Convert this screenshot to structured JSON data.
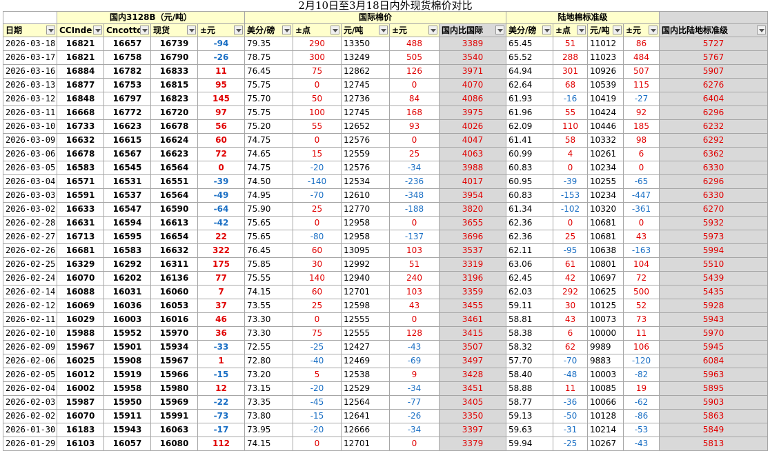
{
  "title": "2月10日至3月18日内外现货棉价对比",
  "groups": [
    "国内3128B（元/吨）",
    "国际棉价",
    "陆地棉标准级"
  ],
  "columns": [
    "日期",
    "CCInde",
    "Cncotto",
    "现货",
    "±元",
    "美分/磅",
    "±点",
    "元/吨",
    "±元",
    "国内比国际",
    "美分/磅",
    "±点",
    "元/吨",
    "±元",
    "国内比陆地标准级"
  ],
  "rows": [
    {
      "date": "2026-03-18",
      "cc": "16821",
      "cn": "16657",
      "spot": "16739",
      "d1": "-94",
      "usc": "79.35",
      "pt": "290",
      "cny": "13350",
      "d2": "488",
      "r1": "3389",
      "lusc": "65.45",
      "lpt": "51",
      "lcny": "11012",
      "ld": "86",
      "r2": "5727"
    },
    {
      "date": "2026-03-17",
      "cc": "16821",
      "cn": "16758",
      "spot": "16790",
      "d1": "-26",
      "usc": "78.75",
      "pt": "300",
      "cny": "13249",
      "d2": "505",
      "r1": "3540",
      "lusc": "65.52",
      "lpt": "288",
      "lcny": "11023",
      "ld": "484",
      "r2": "5767"
    },
    {
      "date": "2026-03-16",
      "cc": "16884",
      "cn": "16782",
      "spot": "16833",
      "d1": "11",
      "usc": "76.45",
      "pt": "75",
      "cny": "12862",
      "d2": "126",
      "r1": "3971",
      "lusc": "64.94",
      "lpt": "301",
      "lcny": "10926",
      "ld": "507",
      "r2": "5907"
    },
    {
      "date": "2026-03-13",
      "cc": "16877",
      "cn": "16753",
      "spot": "16815",
      "d1": "95",
      "usc": "75.75",
      "pt": "0",
      "cny": "12745",
      "d2": "0",
      "r1": "4070",
      "lusc": "62.64",
      "lpt": "68",
      "lcny": "10539",
      "ld": "115",
      "r2": "6276"
    },
    {
      "date": "2026-03-12",
      "cc": "16848",
      "cn": "16797",
      "spot": "16823",
      "d1": "145",
      "usc": "75.70",
      "pt": "50",
      "cny": "12736",
      "d2": "84",
      "r1": "4086",
      "lusc": "61.93",
      "lpt": "-16",
      "lcny": "10419",
      "ld": "-27",
      "r2": "6404"
    },
    {
      "date": "2026-03-11",
      "cc": "16668",
      "cn": "16772",
      "spot": "16720",
      "d1": "97",
      "usc": "75.75",
      "pt": "100",
      "cny": "12745",
      "d2": "168",
      "r1": "3975",
      "lusc": "61.96",
      "lpt": "55",
      "lcny": "10424",
      "ld": "92",
      "r2": "6296"
    },
    {
      "date": "2026-03-10",
      "cc": "16733",
      "cn": "16623",
      "spot": "16678",
      "d1": "56",
      "usc": "75.20",
      "pt": "55",
      "cny": "12652",
      "d2": "93",
      "r1": "4026",
      "lusc": "62.09",
      "lpt": "110",
      "lcny": "10446",
      "ld": "185",
      "r2": "6232"
    },
    {
      "date": "2026-03-09",
      "cc": "16632",
      "cn": "16615",
      "spot": "16624",
      "d1": "60",
      "usc": "74.75",
      "pt": "0",
      "cny": "12576",
      "d2": "0",
      "r1": "4047",
      "lusc": "61.41",
      "lpt": "58",
      "lcny": "10332",
      "ld": "98",
      "r2": "6292"
    },
    {
      "date": "2026-03-06",
      "cc": "16678",
      "cn": "16567",
      "spot": "16623",
      "d1": "72",
      "usc": "74.65",
      "pt": "15",
      "cny": "12559",
      "d2": "25",
      "r1": "4063",
      "lusc": "60.99",
      "lpt": "4",
      "lcny": "10261",
      "ld": "6",
      "r2": "6362"
    },
    {
      "date": "2026-03-05",
      "cc": "16583",
      "cn": "16545",
      "spot": "16564",
      "d1": "0",
      "usc": "74.75",
      "pt": "-20",
      "cny": "12576",
      "d2": "-34",
      "r1": "3988",
      "lusc": "60.83",
      "lpt": "0",
      "lcny": "10234",
      "ld": "0",
      "r2": "6330"
    },
    {
      "date": "2026-03-04",
      "cc": "16571",
      "cn": "16531",
      "spot": "16551",
      "d1": "-39",
      "usc": "74.50",
      "pt": "-140",
      "cny": "12534",
      "d2": "-236",
      "r1": "4017",
      "lusc": "60.95",
      "lpt": "-39",
      "lcny": "10255",
      "ld": "-65",
      "r2": "6296"
    },
    {
      "date": "2026-03-03",
      "cc": "16591",
      "cn": "16537",
      "spot": "16564",
      "d1": "-49",
      "usc": "74.95",
      "pt": "-70",
      "cny": "12610",
      "d2": "-348",
      "r1": "3954",
      "lusc": "60.83",
      "lpt": "-153",
      "lcny": "10234",
      "ld": "-447",
      "r2": "6330"
    },
    {
      "date": "2026-03-02",
      "cc": "16633",
      "cn": "16547",
      "spot": "16590",
      "d1": "-64",
      "usc": "75.90",
      "pt": "25",
      "cny": "12770",
      "d2": "-188",
      "r1": "3820",
      "lusc": "61.34",
      "lpt": "-102",
      "lcny": "10320",
      "ld": "-361",
      "r2": "6270"
    },
    {
      "date": "2026-02-28",
      "cc": "16631",
      "cn": "16594",
      "spot": "16613",
      "d1": "-42",
      "usc": "75.65",
      "pt": "0",
      "cny": "12958",
      "d2": "0",
      "r1": "3655",
      "lusc": "62.36",
      "lpt": "0",
      "lcny": "10681",
      "ld": "0",
      "r2": "5932"
    },
    {
      "date": "2026-02-27",
      "cc": "16713",
      "cn": "16595",
      "spot": "16654",
      "d1": "22",
      "usc": "75.65",
      "pt": "-80",
      "cny": "12958",
      "d2": "-137",
      "r1": "3696",
      "lusc": "62.36",
      "lpt": "25",
      "lcny": "10681",
      "ld": "43",
      "r2": "5973"
    },
    {
      "date": "2026-02-26",
      "cc": "16681",
      "cn": "16583",
      "spot": "16632",
      "d1": "322",
      "usc": "76.45",
      "pt": "60",
      "cny": "13095",
      "d2": "103",
      "r1": "3537",
      "lusc": "62.11",
      "lpt": "-95",
      "lcny": "10638",
      "ld": "-163",
      "r2": "5994"
    },
    {
      "date": "2026-02-25",
      "cc": "16329",
      "cn": "16292",
      "spot": "16311",
      "d1": "175",
      "usc": "75.85",
      "pt": "30",
      "cny": "12992",
      "d2": "51",
      "r1": "3319",
      "lusc": "63.06",
      "lpt": "61",
      "lcny": "10801",
      "ld": "104",
      "r2": "5510"
    },
    {
      "date": "2026-02-24",
      "cc": "16070",
      "cn": "16202",
      "spot": "16136",
      "d1": "77",
      "usc": "75.55",
      "pt": "140",
      "cny": "12940",
      "d2": "240",
      "r1": "3196",
      "lusc": "62.45",
      "lpt": "42",
      "lcny": "10697",
      "ld": "72",
      "r2": "5439"
    },
    {
      "date": "2026-02-14",
      "cc": "16088",
      "cn": "16031",
      "spot": "16060",
      "d1": "7",
      "usc": "74.15",
      "pt": "60",
      "cny": "12701",
      "d2": "103",
      "r1": "3359",
      "lusc": "62.03",
      "lpt": "292",
      "lcny": "10625",
      "ld": "500",
      "r2": "5435"
    },
    {
      "date": "2026-02-12",
      "cc": "16069",
      "cn": "16036",
      "spot": "16053",
      "d1": "37",
      "usc": "73.55",
      "pt": "25",
      "cny": "12598",
      "d2": "43",
      "r1": "3455",
      "lusc": "59.11",
      "lpt": "30",
      "lcny": "10125",
      "ld": "52",
      "r2": "5928"
    },
    {
      "date": "2026-02-11",
      "cc": "16029",
      "cn": "16003",
      "spot": "16016",
      "d1": "46",
      "usc": "73.30",
      "pt": "0",
      "cny": "12555",
      "d2": "0",
      "r1": "3461",
      "lusc": "58.81",
      "lpt": "43",
      "lcny": "10073",
      "ld": "73",
      "r2": "5943"
    },
    {
      "date": "2026-02-10",
      "cc": "15988",
      "cn": "15952",
      "spot": "15970",
      "d1": "36",
      "usc": "73.30",
      "pt": "75",
      "cny": "12555",
      "d2": "128",
      "r1": "3415",
      "lusc": "58.38",
      "lpt": "6",
      "lcny": "10000",
      "ld": "11",
      "r2": "5970"
    },
    {
      "date": "2026-02-09",
      "cc": "15967",
      "cn": "15901",
      "spot": "15934",
      "d1": "-33",
      "usc": "72.55",
      "pt": "-25",
      "cny": "12427",
      "d2": "-43",
      "r1": "3507",
      "lusc": "58.32",
      "lpt": "62",
      "lcny": "9989",
      "ld": "106",
      "r2": "5945"
    },
    {
      "date": "2026-02-06",
      "cc": "16025",
      "cn": "15908",
      "spot": "15967",
      "d1": "1",
      "usc": "72.80",
      "pt": "-40",
      "cny": "12469",
      "d2": "-69",
      "r1": "3497",
      "lusc": "57.70",
      "lpt": "-70",
      "lcny": "9883",
      "ld": "-120",
      "r2": "6084"
    },
    {
      "date": "2026-02-05",
      "cc": "16012",
      "cn": "15919",
      "spot": "15966",
      "d1": "-15",
      "usc": "73.20",
      "pt": "5",
      "cny": "12538",
      "d2": "9",
      "r1": "3428",
      "lusc": "58.40",
      "lpt": "-48",
      "lcny": "10003",
      "ld": "-82",
      "r2": "5963"
    },
    {
      "date": "2026-02-04",
      "cc": "16002",
      "cn": "15958",
      "spot": "15980",
      "d1": "12",
      "usc": "73.15",
      "pt": "-20",
      "cny": "12529",
      "d2": "-34",
      "r1": "3451",
      "lusc": "58.88",
      "lpt": "11",
      "lcny": "10085",
      "ld": "19",
      "r2": "5895"
    },
    {
      "date": "2026-02-03",
      "cc": "15987",
      "cn": "15950",
      "spot": "15969",
      "d1": "-22",
      "usc": "73.35",
      "pt": "-45",
      "cny": "12564",
      "d2": "-77",
      "r1": "3405",
      "lusc": "58.77",
      "lpt": "-36",
      "lcny": "10066",
      "ld": "-62",
      "r2": "5903"
    },
    {
      "date": "2026-02-02",
      "cc": "16070",
      "cn": "15911",
      "spot": "15991",
      "d1": "-73",
      "usc": "73.80",
      "pt": "-15",
      "cny": "12641",
      "d2": "-26",
      "r1": "3350",
      "lusc": "59.13",
      "lpt": "-50",
      "lcny": "10128",
      "ld": "-86",
      "r2": "5863"
    },
    {
      "date": "2026-01-30",
      "cc": "16183",
      "cn": "15943",
      "spot": "16063",
      "d1": "-17",
      "usc": "73.95",
      "pt": "-20",
      "cny": "12666",
      "d2": "-34",
      "r1": "3397",
      "lusc": "59.63",
      "lpt": "-31",
      "lcny": "10214",
      "ld": "-53",
      "r2": "5849"
    },
    {
      "date": "2026-01-29",
      "cc": "16103",
      "cn": "16057",
      "spot": "16080",
      "d1": "112",
      "usc": "74.15",
      "pt": "0",
      "cny": "12701",
      "d2": "0",
      "r1": "3379",
      "lusc": "59.94",
      "lpt": "-25",
      "lcny": "10267",
      "ld": "-43",
      "r2": "5813"
    }
  ]
}
